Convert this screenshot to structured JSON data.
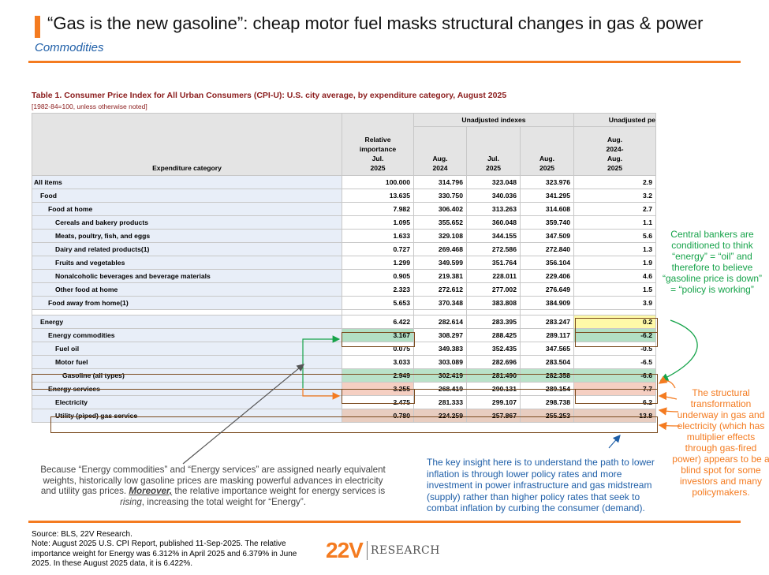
{
  "header": {
    "title": "“Gas is the new gasoline”: cheap motor fuel masks structural changes in gas & power",
    "subtitle": "Commodities"
  },
  "table": {
    "title": "Table 1. Consumer Price Index for All Urban Consumers (CPI-U): U.S. city average, by expenditure category, August 2025",
    "subtitle": "[1982-84=100, unless otherwise noted]",
    "header_group_indexes": "Unadjusted indexes",
    "header_group_pct": "Unadjusted pe",
    "col_category": "Expenditure category",
    "col_relative": [
      "Relative",
      "importance",
      "Jul.",
      "2025"
    ],
    "col_aug2024": [
      "Aug.",
      "2024"
    ],
    "col_jul2025": [
      "Jul.",
      "2025"
    ],
    "col_aug2025": [
      "Aug.",
      "2025"
    ],
    "col_pct": [
      "Aug.",
      "2024-",
      "Aug.",
      "2025"
    ],
    "rows": [
      {
        "category": "All items",
        "relative": "100.000",
        "aug2024": "314.796",
        "jul2025": "323.048",
        "aug2025": "323.976",
        "pct": "2.9"
      },
      {
        "category": "Food",
        "relative": "13.635",
        "aug2024": "330.750",
        "jul2025": "340.036",
        "aug2025": "341.295",
        "pct": "3.2"
      },
      {
        "category": "Food at home",
        "relative": "7.982",
        "aug2024": "306.402",
        "jul2025": "313.263",
        "aug2025": "314.608",
        "pct": "2.7"
      },
      {
        "category": "Cereals and bakery products",
        "relative": "1.095",
        "aug2024": "355.652",
        "jul2025": "360.048",
        "aug2025": "359.740",
        "pct": "1.1"
      },
      {
        "category": "Meats, poultry, fish, and eggs",
        "relative": "1.633",
        "aug2024": "329.108",
        "jul2025": "344.155",
        "aug2025": "347.509",
        "pct": "5.6"
      },
      {
        "category": "Dairy and related products(1)",
        "relative": "0.727",
        "aug2024": "269.468",
        "jul2025": "272.586",
        "aug2025": "272.840",
        "pct": "1.3"
      },
      {
        "category": "Fruits and vegetables",
        "relative": "1.299",
        "aug2024": "349.599",
        "jul2025": "351.764",
        "aug2025": "356.104",
        "pct": "1.9"
      },
      {
        "category": "Nonalcoholic beverages and beverage materials",
        "relative": "0.905",
        "aug2024": "219.381",
        "jul2025": "228.011",
        "aug2025": "229.406",
        "pct": "4.6"
      },
      {
        "category": "Other food at home",
        "relative": "2.323",
        "aug2024": "272.612",
        "jul2025": "277.002",
        "aug2025": "276.649",
        "pct": "1.5"
      },
      {
        "category": "Food away from home(1)",
        "relative": "5.653",
        "aug2024": "370.348",
        "jul2025": "383.808",
        "aug2025": "384.909",
        "pct": "3.9"
      },
      {
        "category": "Energy",
        "relative": "6.422",
        "aug2024": "282.614",
        "jul2025": "283.395",
        "aug2025": "283.247",
        "pct": "0.2"
      },
      {
        "category": "Energy commodities",
        "relative": "3.167",
        "aug2024": "308.297",
        "jul2025": "288.425",
        "aug2025": "289.117",
        "pct": "-6.2"
      },
      {
        "category": "Fuel oil",
        "relative": "0.075",
        "aug2024": "349.383",
        "jul2025": "352.435",
        "aug2025": "347.565",
        "pct": "-0.5"
      },
      {
        "category": "Motor fuel",
        "relative": "3.033",
        "aug2024": "303.089",
        "jul2025": "282.696",
        "aug2025": "283.504",
        "pct": "-6.5"
      },
      {
        "category": "Gasoline (all types)",
        "relative": "2.949",
        "aug2024": "302.419",
        "jul2025": "281.490",
        "aug2025": "282.358",
        "pct": "-6.6"
      },
      {
        "category": "Energy services",
        "relative": "3.255",
        "aug2024": "268.419",
        "jul2025": "290.131",
        "aug2025": "289.154",
        "pct": "7.7"
      },
      {
        "category": "Electricity",
        "relative": "2.475",
        "aug2024": "281.333",
        "jul2025": "299.107",
        "aug2025": "298.738",
        "pct": "6.2"
      },
      {
        "category": "Utility (piped) gas service",
        "relative": "0.780",
        "aug2024": "224.259",
        "jul2025": "257.867",
        "aug2025": "255.253",
        "pct": "13.8"
      }
    ]
  },
  "annotations": {
    "green": "Central bankers are conditioned to think “energy” = “oil” and therefore to believe “gasoline price is down” = “policy is working”",
    "orange": "The structural transformation underway in gas and electricity (which has multiplier effects through gas-fired power) appears to be a blind spot for some investors and many policymakers.",
    "blue": "The key insight here is to understand the path to lower inflation is through lower policy rates and more investment in power infrastructure and gas midstream (supply) rather than higher policy rates that seek to combat inflation by curbing the consumer (demand).",
    "gray_part1": "Because “Energy commodities” and “Energy services” are assigned nearly equivalent weights, historically low gasoline prices are masking powerful advances in electricity and utility gas prices.",
    "gray_emph": "Moreover,",
    "gray_part2": "the relative importance weight for energy services is",
    "gray_italic": "rising",
    "gray_part3": ", increasing the total weight for “Energy”."
  },
  "footer": {
    "source": "Source: BLS, 22V Research.",
    "note": "Note: August 2025 U.S. CPI Report, published 11-Sep-2025. The relative importance weight for Energy was 6.312% in April 2025 and 6.379% in June 2025. In these August 2025 data, it is 6.422%.",
    "logo_mark": "22V",
    "logo_word": "RESEARCH"
  },
  "colors": {
    "accent": "#f47b20",
    "blue_text": "#1f5fa8",
    "green_text": "#16a34a",
    "table_title": "#8b1c1c"
  }
}
